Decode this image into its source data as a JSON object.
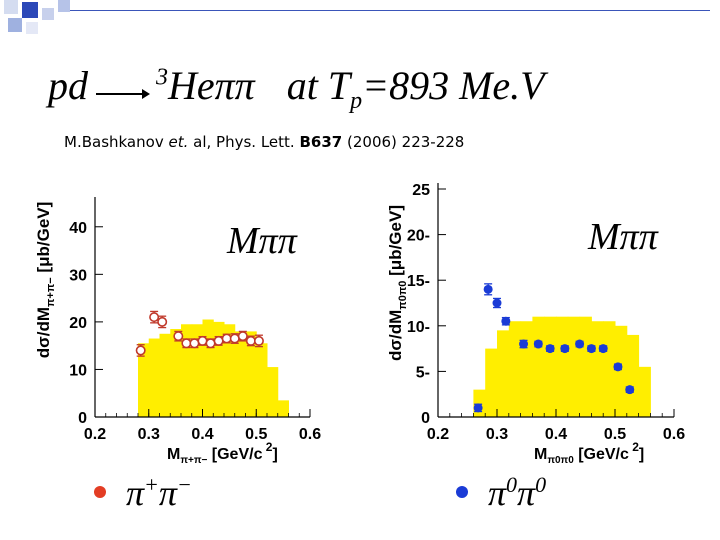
{
  "slide": {
    "title": {
      "reaction_lhs": "pd",
      "product_mass": "3",
      "product_main": "Heππ",
      "condition_prefix": "at T",
      "condition_sub": "p",
      "condition_value": "=893 Me.V"
    },
    "reference": {
      "authors": "M.Bashkanov",
      "etal": "et.",
      "rest": "al, Phys. Lett.",
      "volume": "B637",
      "pages": "(2006) 223-228"
    },
    "legend": [
      {
        "label_base": "π",
        "label_sup1": "+",
        "label_base2": "π",
        "label_sup2": "−",
        "color": "#e33d24"
      },
      {
        "label_base": "π",
        "label_sup1": "0",
        "label_base2": "π",
        "label_sup2": "0",
        "color": "#1a3bd6"
      }
    ]
  },
  "chart_data": [
    {
      "type": "scatter",
      "panel_label": "Mππ",
      "ylabel": "dσ/dM",
      "ylabel_sub": "π+π−",
      "ylabel_units": "[μb/GeV]",
      "xlabel": "M",
      "xlabel_sub": "π+π−",
      "xlabel_units": "[GeV/c",
      "xlabel_units_sup": "2",
      "xlabel_units_end": "]",
      "xlim": [
        0.2,
        0.6
      ],
      "ylim": [
        0,
        45
      ],
      "xticks": [
        "0.2",
        "0.3",
        "0.4",
        "0.5",
        "0.6"
      ],
      "yticks": [
        "0",
        "10",
        "20",
        "30",
        "40"
      ],
      "xtick_values": [
        0.2,
        0.3,
        0.4,
        0.5,
        0.6
      ],
      "ytick_values": [
        0,
        10,
        20,
        30,
        40
      ],
      "histogram": {
        "color": "#ffee00",
        "edges": [
          0.28,
          0.3,
          0.32,
          0.34,
          0.36,
          0.38,
          0.4,
          0.42,
          0.44,
          0.46,
          0.48,
          0.5,
          0.52,
          0.54,
          0.56
        ],
        "values": [
          15.5,
          16.5,
          17.5,
          18.5,
          19.5,
          19.5,
          20.5,
          20,
          19.5,
          18,
          18,
          15.5,
          10.5,
          3.5
        ]
      },
      "points": {
        "color": "#c0392b",
        "marker": "open-circle",
        "x": [
          0.285,
          0.31,
          0.325,
          0.355,
          0.37,
          0.385,
          0.4,
          0.415,
          0.43,
          0.445,
          0.46,
          0.475,
          0.49,
          0.505
        ],
        "y": [
          14,
          21,
          20,
          17,
          15.5,
          15.5,
          16,
          15.5,
          16,
          16.5,
          16.5,
          17,
          16,
          16
        ],
        "yerr": [
          1.2,
          1.2,
          1.2,
          1,
          0.9,
          0.9,
          0.9,
          0.9,
          0.9,
          0.9,
          1,
          1,
          1,
          1.2
        ]
      }
    },
    {
      "type": "scatter",
      "panel_label": "Mππ",
      "ylabel": "dσ/dM",
      "ylabel_sub": "π0π0",
      "ylabel_units": "[μb/GeV]",
      "xlabel": "M",
      "xlabel_sub": "π0π0",
      "xlabel_units": "[GeV/c",
      "xlabel_units_sup": "2",
      "xlabel_units_end": "]",
      "xlim": [
        0.2,
        0.6
      ],
      "ylim": [
        0,
        25
      ],
      "xticks": [
        "0.2",
        "0.3",
        "0.4",
        "0.5",
        "0.6"
      ],
      "yticks": [
        "0",
        "5-",
        "10-",
        "15-",
        "20-",
        "25"
      ],
      "xtick_values": [
        0.2,
        0.3,
        0.4,
        0.5,
        0.6
      ],
      "ytick_values": [
        0,
        5,
        10,
        15,
        20,
        25
      ],
      "histogram": {
        "color": "#ffee00",
        "edges": [
          0.26,
          0.28,
          0.3,
          0.32,
          0.34,
          0.36,
          0.38,
          0.4,
          0.42,
          0.44,
          0.46,
          0.48,
          0.5,
          0.52,
          0.54,
          0.56
        ],
        "values": [
          3,
          7.5,
          9.5,
          10.5,
          10.5,
          11,
          11,
          11,
          11,
          11,
          10.5,
          10.5,
          10,
          9,
          5.5
        ]
      },
      "points": {
        "color": "#1a3bd6",
        "marker": "filled-circle",
        "x": [
          0.268,
          0.285,
          0.3,
          0.315,
          0.345,
          0.37,
          0.39,
          0.415,
          0.44,
          0.46,
          0.48,
          0.505,
          0.525
        ],
        "y": [
          1,
          14,
          12.5,
          10.5,
          8,
          8,
          7.5,
          7.5,
          8,
          7.5,
          7.5,
          5.5,
          3
        ],
        "yerr": [
          0.4,
          0.6,
          0.5,
          0.4,
          0.4,
          0.3,
          0.3,
          0.3,
          0.3,
          0.3,
          0.3,
          0.3,
          0.3
        ]
      }
    }
  ]
}
